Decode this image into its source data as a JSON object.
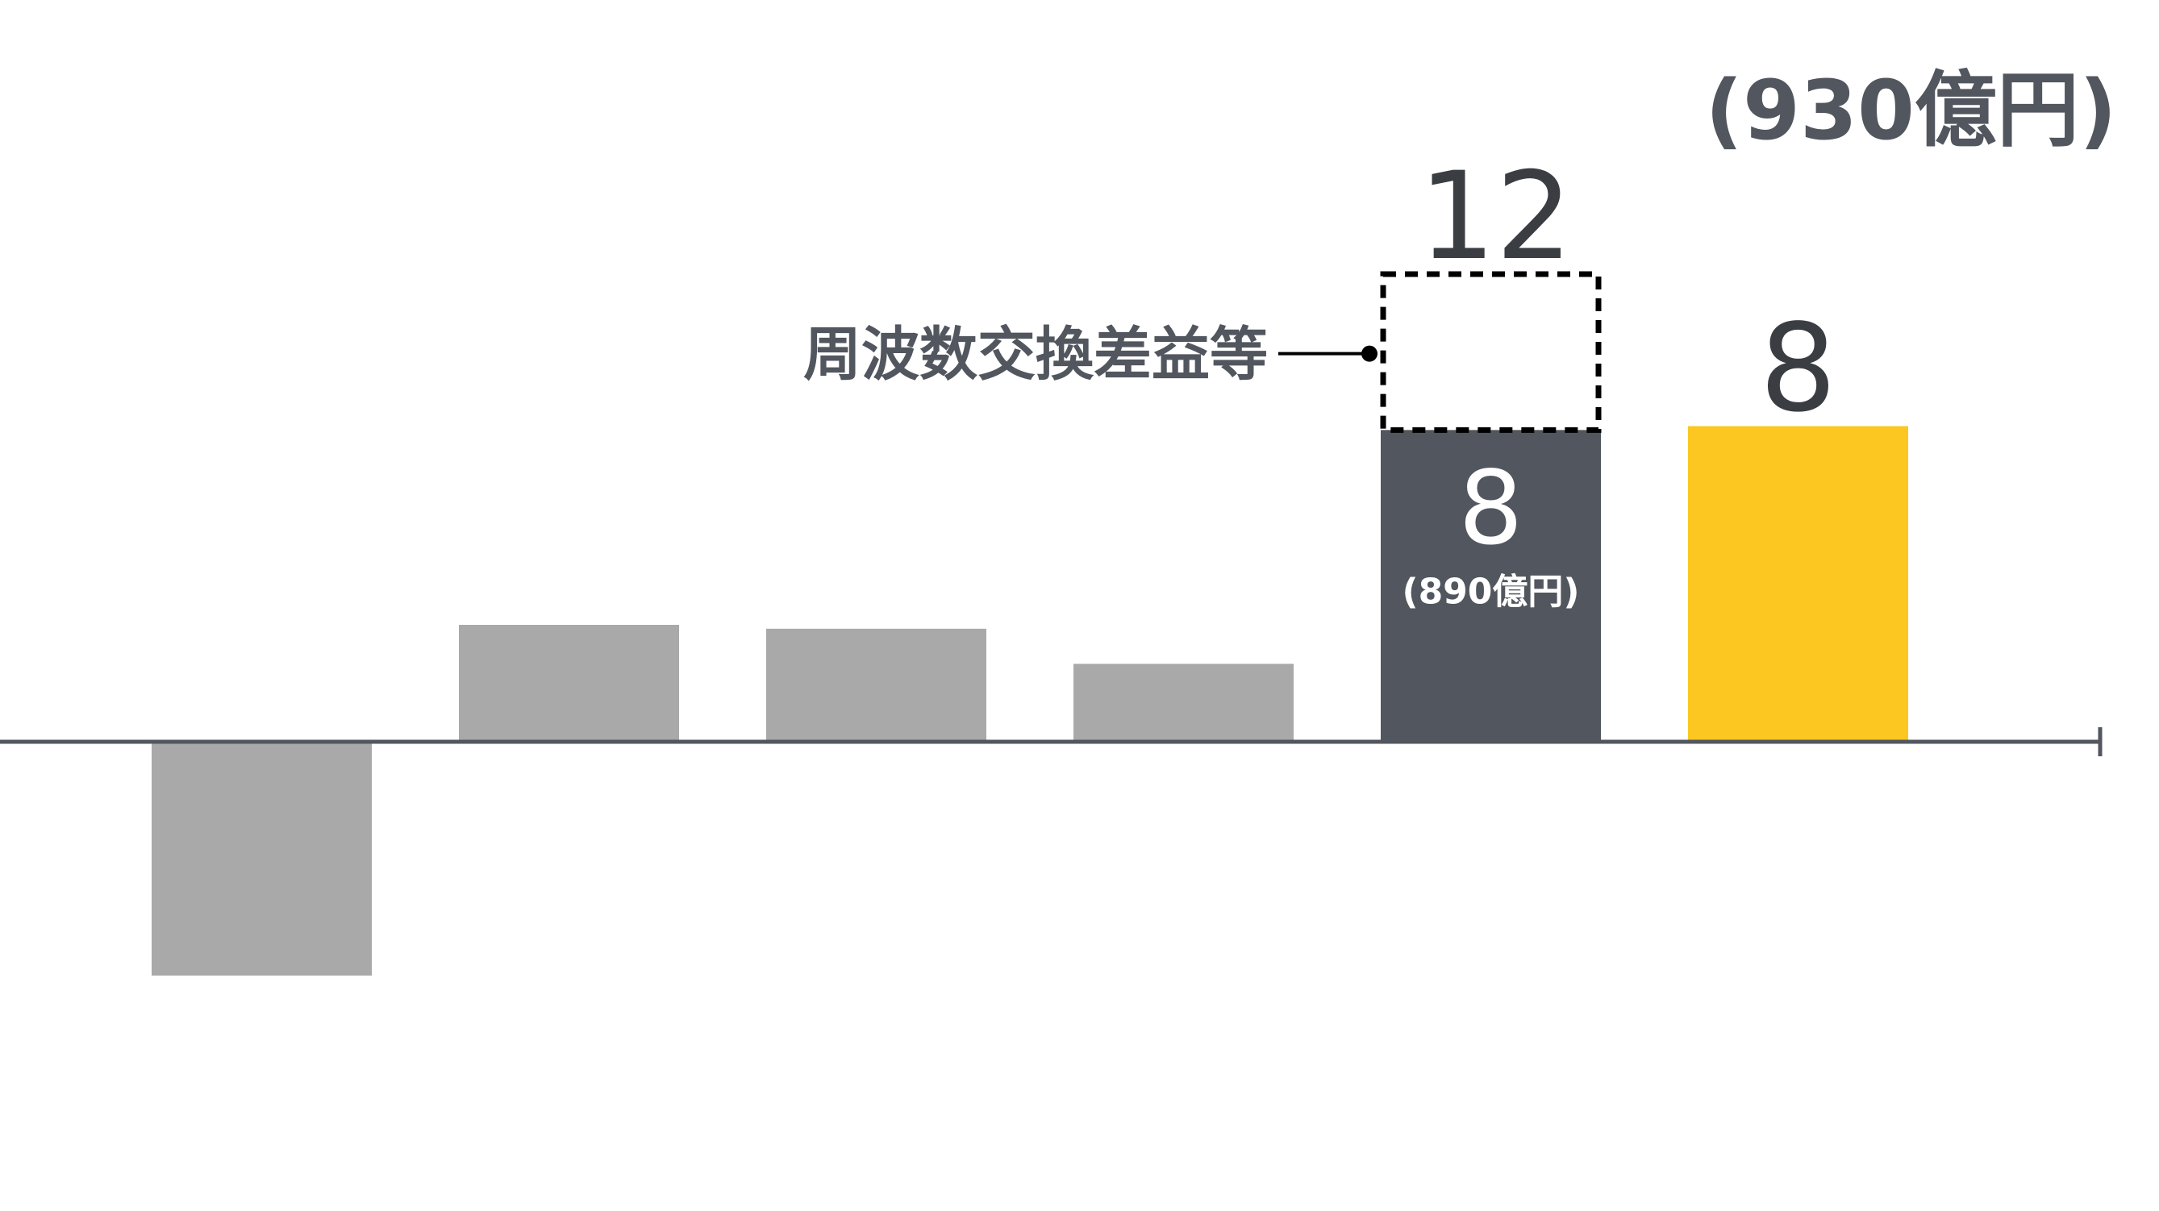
{
  "chart_data": {
    "type": "bar",
    "title": "",
    "xlabel": "",
    "ylabel": "",
    "ylim": [
      -6,
      12
    ],
    "grid": false,
    "legend": "none",
    "categories": [
      "",
      "",
      "",
      "",
      "",
      ""
    ],
    "values": [
      -6.0,
      3.0,
      2.9,
      2.0,
      8.0,
      8.1
    ],
    "colors": [
      "#a8a9a8",
      "#a8a9a8",
      "#a8a9a8",
      "#a8a9a8",
      "#52565e",
      "#fbc720"
    ],
    "axis_color": "#52565e",
    "label_color": "#52565e",
    "dashed_extension": {
      "bar_index": 4,
      "from": 8.0,
      "to": 12.0,
      "label": "12",
      "color": "#000000"
    },
    "annotations": {
      "callout": "周波数交換差益等",
      "bar5_value": "8",
      "bar5_sub": "(890億円)",
      "bar6_value": "8",
      "bar6_sub": "(930億円)"
    }
  }
}
